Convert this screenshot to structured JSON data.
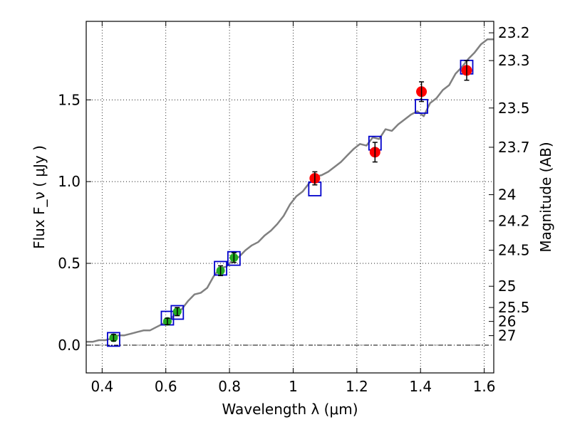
{
  "chart_data": {
    "type": "scatter",
    "xlabel": "Wavelength λ (μm)",
    "ylabel": "Flux F_ν ( μJy )",
    "ylabel_right": "Magnitude (AB)",
    "xlim": [
      0.35,
      1.63
    ],
    "ylim": [
      -0.17,
      1.98
    ],
    "x_ticks": [
      0.4,
      0.6,
      0.8,
      1.0,
      1.2,
      1.4,
      1.6
    ],
    "x_tick_labels": [
      "0.4",
      "0.6",
      "0.8",
      "1",
      "1.2",
      "1.4",
      "1.6"
    ],
    "y_ticks": [
      0.0,
      0.5,
      1.0,
      1.5
    ],
    "y_tick_labels": [
      "0.0",
      "0.5",
      "1.0",
      "1.5"
    ],
    "grid": true,
    "magnitude_ticks": [
      {
        "label": "23.2",
        "flux": 1.91
      },
      {
        "label": "23.3",
        "flux": 1.74
      },
      {
        "label": "23.5",
        "flux": 1.45
      },
      {
        "label": "23.7",
        "flux": 1.21
      },
      {
        "label": "24",
        "flux": 0.92
      },
      {
        "label": "24.2",
        "flux": 0.76
      },
      {
        "label": "24.5",
        "flux": 0.58
      },
      {
        "label": "25",
        "flux": 0.36
      },
      {
        "label": "25.5",
        "flux": 0.23
      },
      {
        "label": "26",
        "flux": 0.145
      },
      {
        "label": "27",
        "flux": 0.058
      }
    ],
    "series": [
      {
        "type": "line",
        "color": "#808080",
        "x": [
          0.35,
          0.37,
          0.39,
          0.41,
          0.43,
          0.45,
          0.47,
          0.49,
          0.51,
          0.53,
          0.55,
          0.57,
          0.59,
          0.61,
          0.63,
          0.65,
          0.67,
          0.69,
          0.71,
          0.73,
          0.75,
          0.77,
          0.79,
          0.81,
          0.83,
          0.85,
          0.87,
          0.89,
          0.91,
          0.93,
          0.95,
          0.97,
          0.99,
          1.01,
          1.03,
          1.05,
          1.07,
          1.09,
          1.11,
          1.13,
          1.15,
          1.17,
          1.19,
          1.21,
          1.23,
          1.25,
          1.27,
          1.29,
          1.31,
          1.33,
          1.35,
          1.37,
          1.39,
          1.41,
          1.43,
          1.45,
          1.47,
          1.49,
          1.51,
          1.53,
          1.55,
          1.57,
          1.59,
          1.61,
          1.63
        ],
        "y": [
          0.02,
          0.02,
          0.03,
          0.03,
          0.04,
          0.06,
          0.06,
          0.07,
          0.08,
          0.09,
          0.09,
          0.11,
          0.13,
          0.15,
          0.19,
          0.22,
          0.27,
          0.31,
          0.32,
          0.35,
          0.42,
          0.47,
          0.48,
          0.52,
          0.54,
          0.58,
          0.61,
          0.63,
          0.67,
          0.7,
          0.74,
          0.79,
          0.86,
          0.91,
          0.94,
          0.99,
          1.03,
          1.04,
          1.06,
          1.09,
          1.12,
          1.16,
          1.2,
          1.23,
          1.22,
          1.27,
          1.26,
          1.32,
          1.31,
          1.35,
          1.38,
          1.41,
          1.43,
          1.4,
          1.48,
          1.51,
          1.56,
          1.59,
          1.66,
          1.7,
          1.75,
          1.79,
          1.84,
          1.87,
          1.87
        ]
      },
      {
        "type": "model_boxes",
        "color": "#0000cc",
        "x": [
          0.436,
          0.605,
          0.636,
          0.772,
          0.814,
          1.068,
          1.257,
          1.403,
          1.545
        ],
        "y": [
          0.035,
          0.165,
          0.2,
          0.47,
          0.53,
          0.955,
          1.235,
          1.46,
          1.7
        ]
      },
      {
        "type": "errorbar",
        "color": "#22aa22",
        "x": [
          0.436,
          0.605,
          0.636,
          0.772,
          0.814
        ],
        "y": [
          0.045,
          0.145,
          0.205,
          0.455,
          0.535
        ],
        "err": [
          0.02,
          0.02,
          0.025,
          0.03,
          0.03
        ]
      },
      {
        "type": "errorbar",
        "color": "#ff0000",
        "x": [
          1.068,
          1.257,
          1.403,
          1.545
        ],
        "y": [
          1.02,
          1.18,
          1.55,
          1.68
        ],
        "err": [
          0.04,
          0.06,
          0.06,
          0.06
        ]
      }
    ]
  }
}
